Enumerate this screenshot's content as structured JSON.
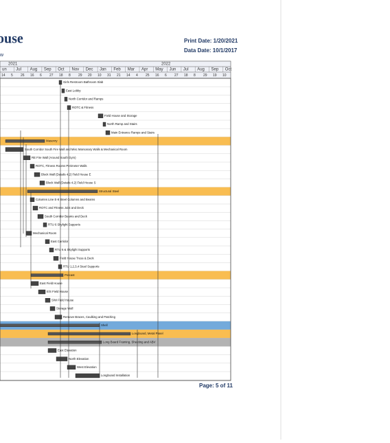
{
  "header": {
    "title": "ouse",
    "subtitle": "w",
    "print_date": "Print Date: 1/20/2021",
    "data_date": "Data Date: 10/1/2017"
  },
  "timeline": {
    "years": [
      "2021",
      "2022"
    ],
    "months": [
      "un",
      "Jul",
      "Aug",
      "Sep",
      "Oct",
      "Nov",
      "Dec",
      "Jan",
      "Feb",
      "Mar",
      "Apr",
      "May",
      "Jun",
      "Jul",
      "Aug",
      "Sep",
      "Oct"
    ],
    "days": [
      "14",
      "5",
      "26",
      "16",
      "6",
      "27",
      "18",
      "8",
      "29",
      "20",
      "10",
      "31",
      "21",
      "14",
      "4",
      "25",
      "16",
      "6",
      "27",
      "18",
      "8",
      "29",
      "19",
      "10"
    ]
  },
  "tasks": [
    {
      "label": "Girls Restroom Bathroom Slab"
    },
    {
      "label": "East Lobby"
    },
    {
      "label": "North Corridor and Ramps"
    },
    {
      "label": "ROTC & Fitness"
    },
    {
      "label": "Field House and Storage"
    },
    {
      "label": "North Ramp and Stairs"
    },
    {
      "label": "Main Entrance Ramps and Stairs"
    },
    {
      "label": "Masonry"
    },
    {
      "label": "South Corridor South Fire Wall and Misc Marsonary Walls & Mechanical Room"
    },
    {
      "label": "RE Fire Wall (Around South Gym)"
    },
    {
      "label": "ROTC, Fitness Rooms Perimeter Walls"
    },
    {
      "label": "Block Wall (Details 4.2) Field House E"
    },
    {
      "label": "Block Wall (Details 4.2) Field House S"
    },
    {
      "label": "Structural Steel"
    },
    {
      "label": "Columns Line E-8 Steel Columns and Beams"
    },
    {
      "label": "ROTC and Fitness Joist and Deck"
    },
    {
      "label": "South Corridor Beams and Deck"
    },
    {
      "label": "RTU 6 Skylight Supports"
    },
    {
      "label": "Mechanical Room"
    },
    {
      "label": "East Corridor"
    },
    {
      "label": "RTU 6 & Skylight Supports"
    },
    {
      "label": "Field House Truss & Deck"
    },
    {
      "label": "RTU 1,2,3,4 Steel Supports"
    },
    {
      "label": "Precast"
    },
    {
      "label": "East Field House"
    },
    {
      "label": "E/S Field House"
    },
    {
      "label": "S/W Field House"
    },
    {
      "label": "Storage Wall"
    },
    {
      "label": "Remove Braces, Caulking and Patching"
    },
    {
      "label": "Shell"
    },
    {
      "label": "Longboard, Metal Panel"
    },
    {
      "label": "Long Board Framing, Sheeting and ABV"
    },
    {
      "label": "East Elevation"
    },
    {
      "label": "North Elevation"
    },
    {
      "label": "West Elevation"
    },
    {
      "label": "Longboard Installation"
    }
  ],
  "footer": {
    "page": "Page: 5 of 11"
  }
}
